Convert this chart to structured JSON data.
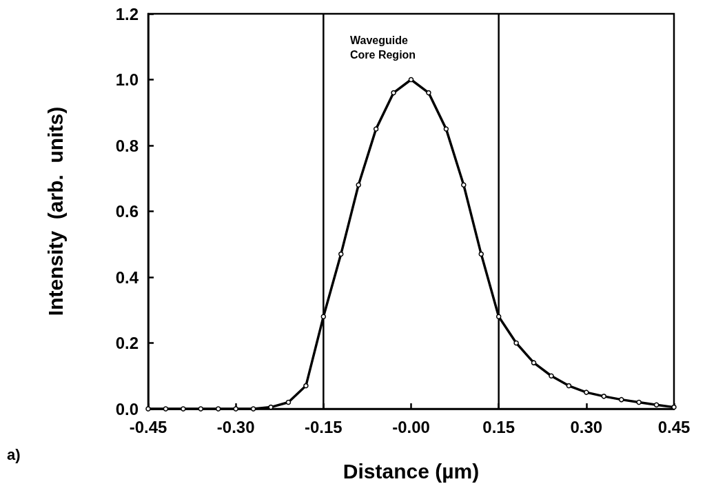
{
  "chart_data": {
    "type": "line",
    "xlabel": "Distance (µm)",
    "ylabel": "Intensity  (arb.  units)",
    "x": [
      -0.45,
      -0.42,
      -0.39,
      -0.36,
      -0.33,
      -0.3,
      -0.27,
      -0.24,
      -0.21,
      -0.18,
      -0.15,
      -0.12,
      -0.09,
      -0.06,
      -0.03,
      0,
      0.03,
      0.06,
      0.09,
      0.12,
      0.15,
      0.18,
      0.21,
      0.24,
      0.27,
      0.3,
      0.33,
      0.36,
      0.39,
      0.42,
      0.45
    ],
    "series": [
      {
        "color": "#000000",
        "values": [
          0,
          0,
          0,
          0,
          0,
          0,
          0,
          0.005,
          0.02,
          0.07,
          0.28,
          0.47,
          0.68,
          0.85,
          0.96,
          1.0,
          0.96,
          0.85,
          0.68,
          0.47,
          0.28,
          0.2,
          0.14,
          0.1,
          0.07,
          0.05,
          0.038,
          0.028,
          0.02,
          0.012,
          0.005
        ]
      }
    ],
    "xlim": [
      -0.45,
      0.45
    ],
    "xticks": [
      -0.45,
      {
        "value": -0.3,
        "label": "-0.30"
      },
      -0.15,
      {
        "value": 0,
        "label": "-0.00"
      },
      0.15,
      {
        "value": 0.3,
        "label": "0.30"
      },
      0.45
    ],
    "ylim": [
      0,
      1.2
    ],
    "yticks": [
      {
        "value": 0,
        "label": "0.0"
      },
      0.2,
      0.4,
      0.6,
      0.8,
      {
        "value": 1,
        "label": "1.0"
      },
      1.2
    ],
    "ref_lines": [
      {
        "axis": "x",
        "value": -0.15,
        "color": "#000000"
      },
      {
        "axis": "x",
        "value": 0.15,
        "color": "#000000"
      }
    ],
    "annotations": [
      "Waveguide\nCore Region",
      "a)"
    ],
    "marker": "circle",
    "line_style": "solid"
  }
}
